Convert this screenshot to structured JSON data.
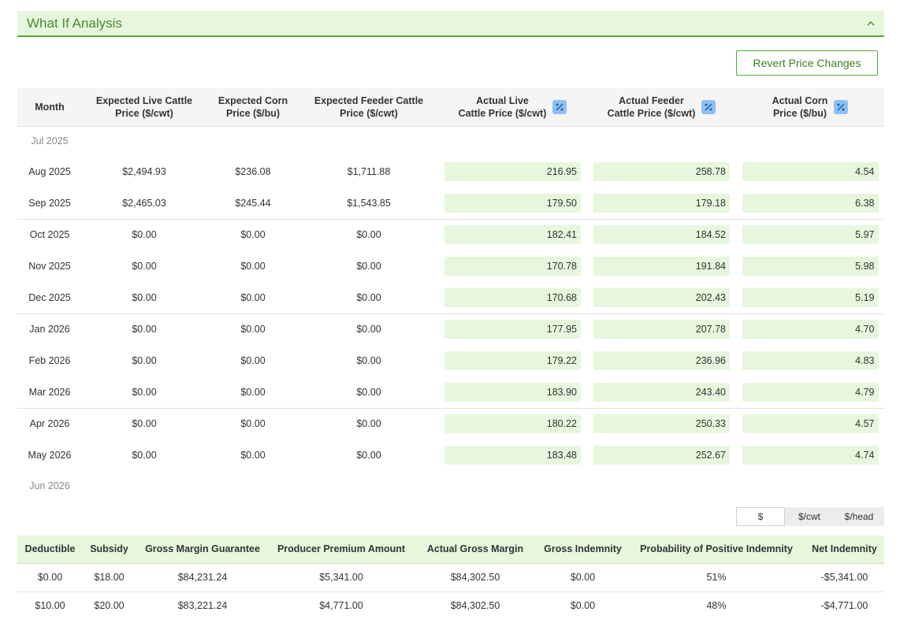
{
  "panel": {
    "title": "What If Analysis"
  },
  "actions": {
    "revert_label": "Revert Price Changes"
  },
  "price_table": {
    "headers": {
      "month": "Month",
      "exp_live_1": "Expected Live Cattle",
      "exp_live_2": "Price ($/cwt)",
      "exp_corn_1": "Expected Corn",
      "exp_corn_2": "Price ($/bu)",
      "exp_feeder_1": "Expected Feeder Cattle",
      "exp_feeder_2": "Price ($/cwt)",
      "act_live_1": "Actual Live",
      "act_live_2": "Cattle Price ($/cwt)",
      "act_feeder_1": "Actual Feeder",
      "act_feeder_2": "Cattle Price ($/cwt)",
      "act_corn_1": "Actual Corn",
      "act_corn_2": "Price ($/bu)"
    },
    "first_month": "Jul 2025",
    "last_month": "Jun 2026",
    "rows": [
      {
        "month": "Aug 2025",
        "exp_live": "$2,494.93",
        "exp_corn": "$236.08",
        "exp_feeder": "$1,711.88",
        "act_live": "216.95",
        "act_feeder": "258.78",
        "act_corn": "4.54"
      },
      {
        "month": "Sep 2025",
        "exp_live": "$2,465.03",
        "exp_corn": "$245.44",
        "exp_feeder": "$1,543.85",
        "act_live": "179.50",
        "act_feeder": "179.18",
        "act_corn": "6.38"
      },
      {
        "month": "Oct 2025",
        "exp_live": "$0.00",
        "exp_corn": "$0.00",
        "exp_feeder": "$0.00",
        "act_live": "182.41",
        "act_feeder": "184.52",
        "act_corn": "5.97"
      },
      {
        "month": "Nov 2025",
        "exp_live": "$0.00",
        "exp_corn": "$0.00",
        "exp_feeder": "$0.00",
        "act_live": "170.78",
        "act_feeder": "191.84",
        "act_corn": "5.98"
      },
      {
        "month": "Dec 2025",
        "exp_live": "$0.00",
        "exp_corn": "$0.00",
        "exp_feeder": "$0.00",
        "act_live": "170.68",
        "act_feeder": "202.43",
        "act_corn": "5.19"
      },
      {
        "month": "Jan 2026",
        "exp_live": "$0.00",
        "exp_corn": "$0.00",
        "exp_feeder": "$0.00",
        "act_live": "177.95",
        "act_feeder": "207.78",
        "act_corn": "4.70"
      },
      {
        "month": "Feb 2026",
        "exp_live": "$0.00",
        "exp_corn": "$0.00",
        "exp_feeder": "$0.00",
        "act_live": "179.22",
        "act_feeder": "236.96",
        "act_corn": "4.83"
      },
      {
        "month": "Mar 2026",
        "exp_live": "$0.00",
        "exp_corn": "$0.00",
        "exp_feeder": "$0.00",
        "act_live": "183.90",
        "act_feeder": "243.40",
        "act_corn": "4.79"
      },
      {
        "month": "Apr 2026",
        "exp_live": "$0.00",
        "exp_corn": "$0.00",
        "exp_feeder": "$0.00",
        "act_live": "180.22",
        "act_feeder": "250.33",
        "act_corn": "4.57"
      },
      {
        "month": "May 2026",
        "exp_live": "$0.00",
        "exp_corn": "$0.00",
        "exp_feeder": "$0.00",
        "act_live": "183.48",
        "act_feeder": "252.67",
        "act_corn": "4.74"
      }
    ]
  },
  "unit_toggle": {
    "options": [
      "$",
      "$/cwt",
      "$/head"
    ],
    "selected": "$"
  },
  "results_table": {
    "headers": [
      "Deductible",
      "Subsidy",
      "Gross Margin Guarantee",
      "Producer Premium Amount",
      "Actual Gross Margin",
      "Gross Indemnity",
      "Probability of Positive Indemnity",
      "Net Indemnity"
    ],
    "rows": [
      [
        "$0.00",
        "$18.00",
        "$84,231.24",
        "$5,341.00",
        "$84,302.50",
        "$0.00",
        "51%",
        "-$5,341.00"
      ],
      [
        "$10.00",
        "$20.00",
        "$83,221.24",
        "$4,771.00",
        "$84,302.50",
        "$0.00",
        "48%",
        "-$4,771.00"
      ]
    ]
  },
  "icons": {
    "collapse": "chevron-up-icon",
    "percent": "percent-icon"
  },
  "colors": {
    "accent": "#5aa83a",
    "accent_light": "#e6f7dd",
    "title": "#4a8c2f",
    "percent_badge": "#8cc0f2"
  }
}
